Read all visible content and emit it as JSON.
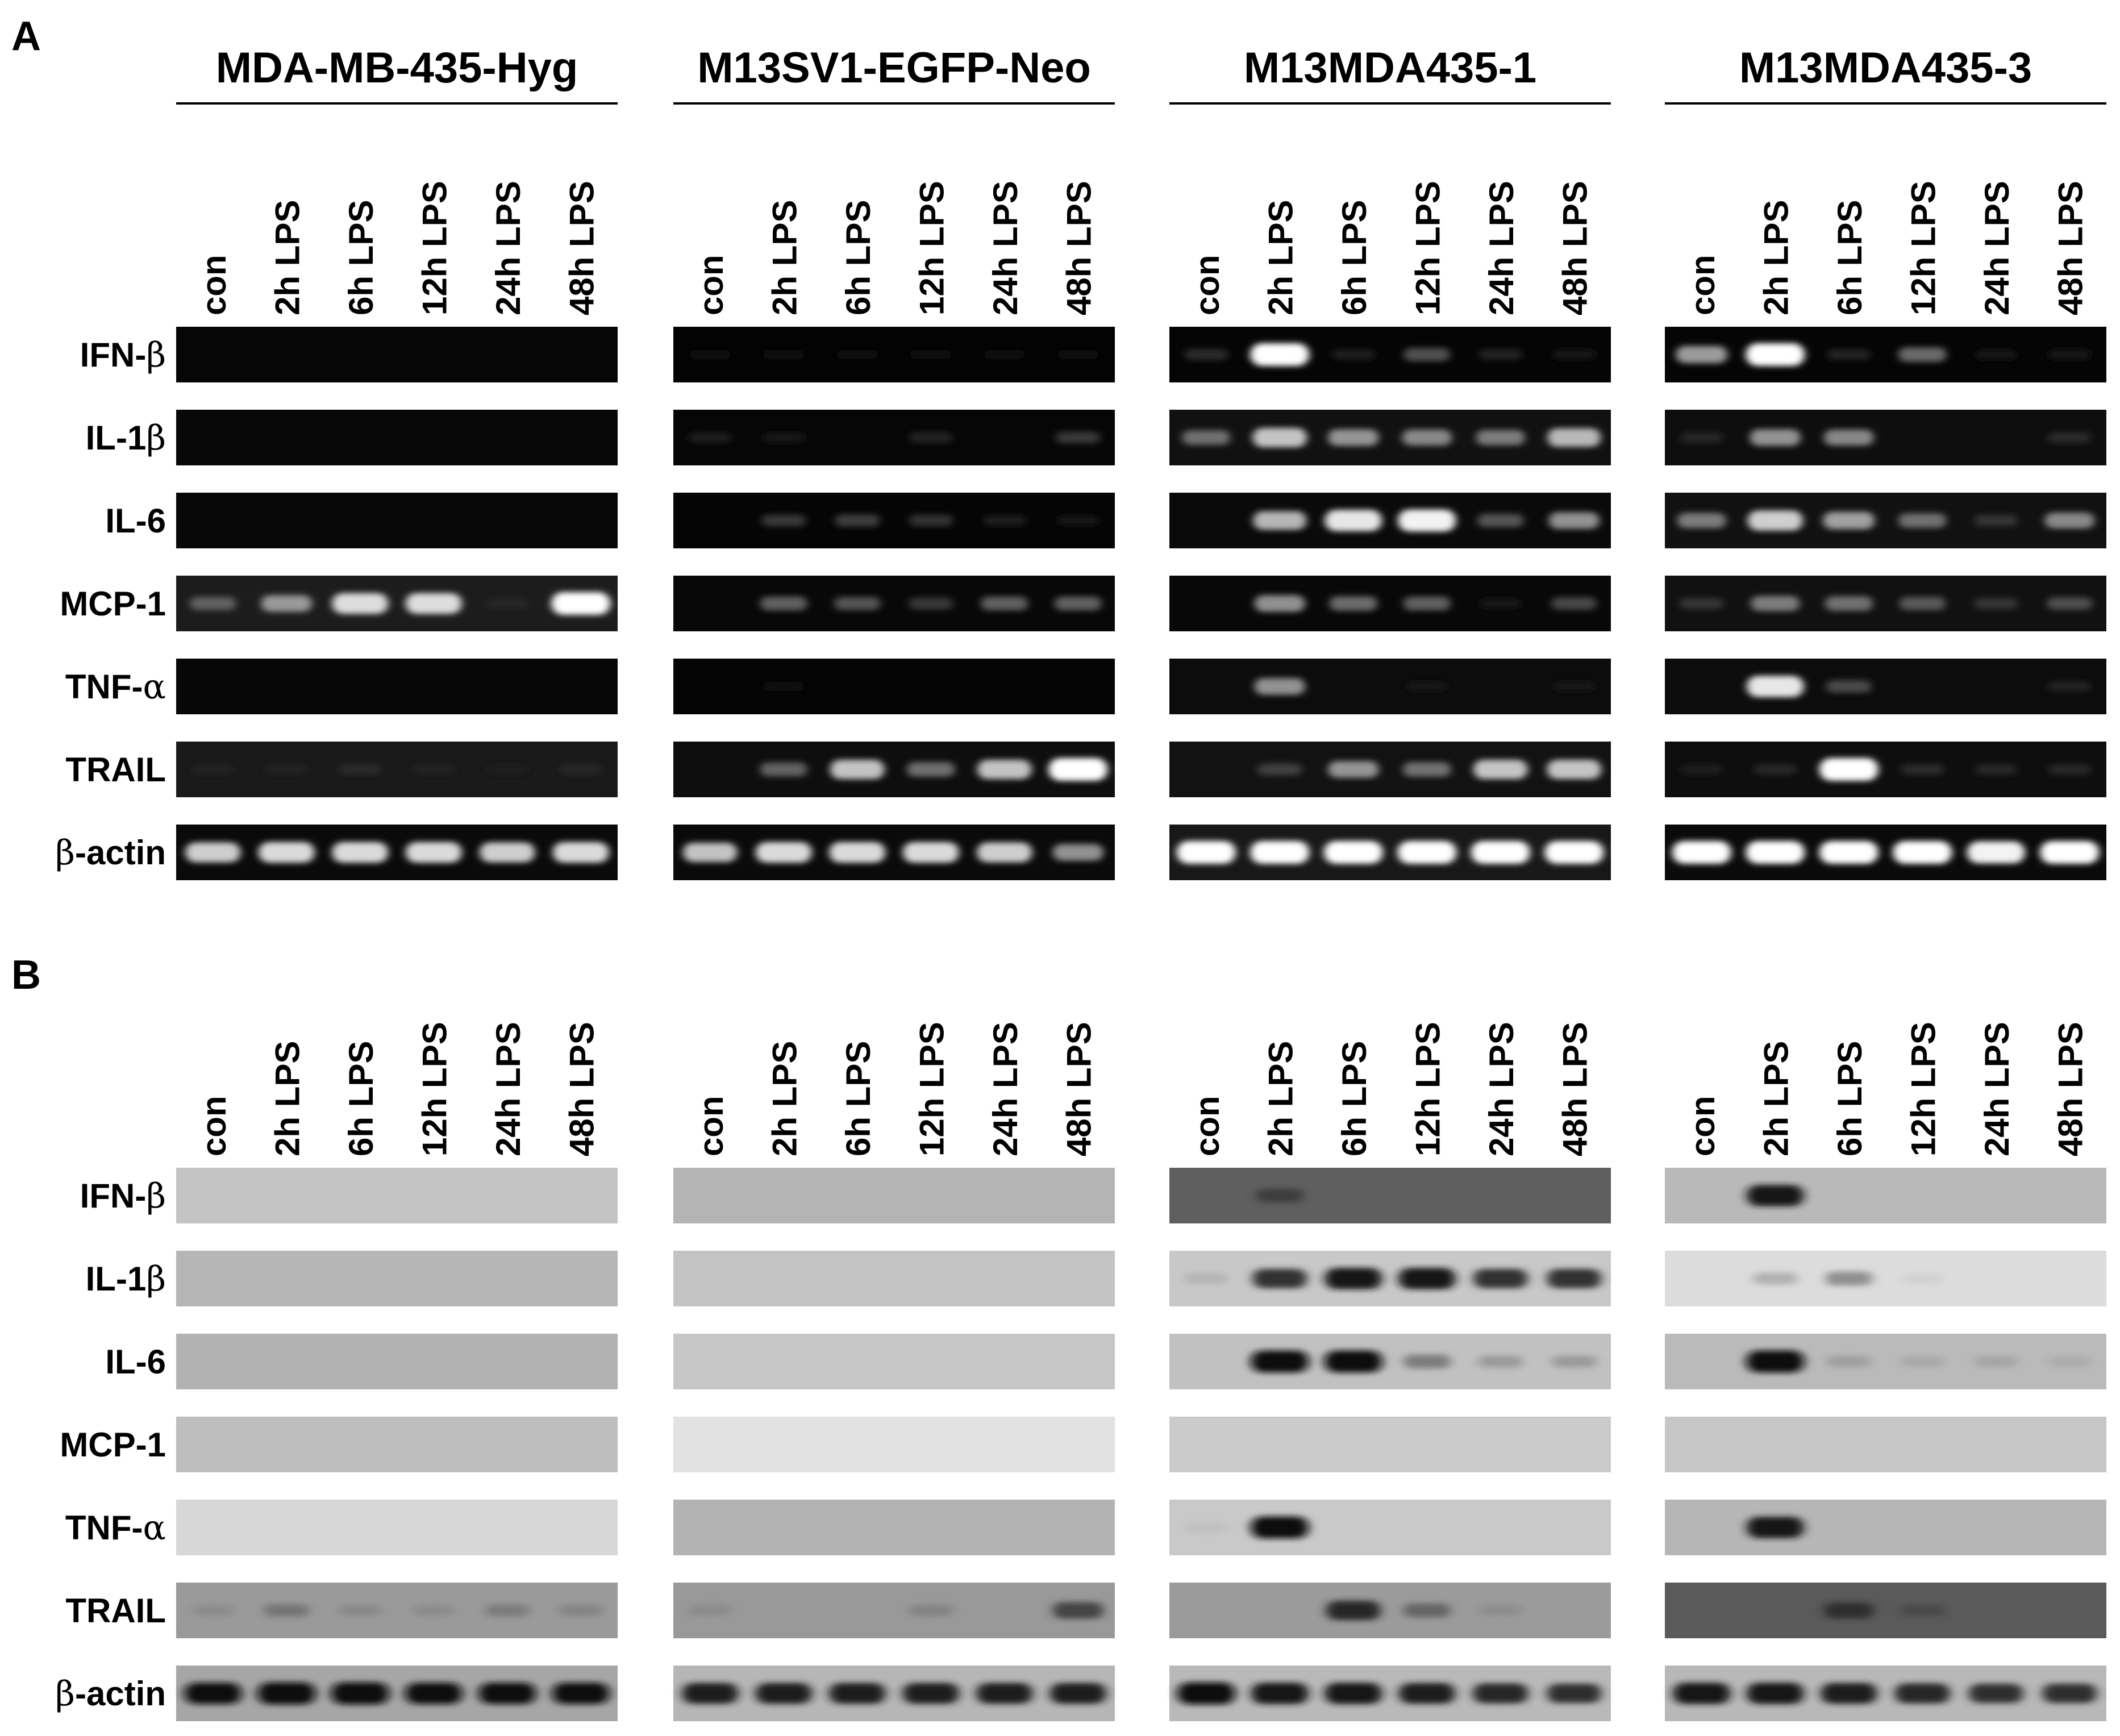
{
  "panels": [
    {
      "letter": "A",
      "type": "RT-PCR agarose gel"
    },
    {
      "letter": "B",
      "type": "Western blot"
    }
  ],
  "groups": [
    {
      "title": "MDA-MB-435-Hyg"
    },
    {
      "title": "M13SV1-EGFP-Neo"
    },
    {
      "title": "M13MDA435-1"
    },
    {
      "title": "M13MDA435-3"
    }
  ],
  "lanes": [
    "con",
    "2h LPS",
    "6h LPS",
    "12h LPS",
    "24h LPS",
    "48h LPS"
  ],
  "rows": [
    {
      "pre": "IFN-",
      "sym": "β",
      "post": ""
    },
    {
      "pre": "IL-1",
      "sym": "β",
      "post": ""
    },
    {
      "pre": "IL-6",
      "sym": "",
      "post": ""
    },
    {
      "pre": "MCP-1",
      "sym": "",
      "post": ""
    },
    {
      "pre": "TNF-",
      "sym": "α",
      "post": ""
    },
    {
      "pre": "TRAIL",
      "sym": "",
      "post": ""
    },
    {
      "pre": "",
      "sym": "β",
      "post": "-actin"
    }
  ],
  "strips": {
    "A": [
      [
        {
          "bg": "#060606",
          "bands": [
            0,
            0,
            0,
            0,
            0,
            0
          ]
        },
        {
          "bg": "#030303",
          "bands": [
            0.03,
            0.03,
            0.02,
            0.02,
            0.03,
            0.02
          ]
        },
        {
          "bg": "#050505",
          "bands": [
            0.15,
            1,
            0.1,
            0.3,
            0.12,
            0.08
          ]
        },
        {
          "bg": "#050505",
          "bands": [
            0.6,
            1,
            0.12,
            0.4,
            0.05,
            0.08
          ]
        }
      ],
      [
        {
          "bg": "#080808",
          "bands": [
            0,
            0,
            0,
            0,
            0,
            0
          ]
        },
        {
          "bg": "#060606",
          "bands": [
            0.1,
            0.06,
            0,
            0.12,
            0,
            0.2
          ]
        },
        {
          "bg": "#111111",
          "bands": [
            0.4,
            0.75,
            0.55,
            0.5,
            0.45,
            0.7
          ]
        },
        {
          "bg": "#0e0e0e",
          "bands": [
            0.1,
            0.55,
            0.5,
            0,
            0,
            0.12
          ]
        }
      ],
      [
        {
          "bg": "#080808",
          "bands": [
            0,
            0,
            0,
            0,
            0,
            0
          ]
        },
        {
          "bg": "#050505",
          "bands": [
            0,
            0.2,
            0.22,
            0.18,
            0.1,
            0.05
          ]
        },
        {
          "bg": "#0a0a0a",
          "bands": [
            0,
            0.7,
            0.9,
            0.95,
            0.3,
            0.55
          ]
        },
        {
          "bg": "#111111",
          "bands": [
            0.45,
            0.8,
            0.6,
            0.4,
            0.15,
            0.5
          ]
        }
      ],
      [
        {
          "bg": "#1c1c1c",
          "bands": [
            0.3,
            0.55,
            0.85,
            0.85,
            0.05,
            1
          ]
        },
        {
          "bg": "#080808",
          "bands": [
            0,
            0.35,
            0.3,
            0.2,
            0.35,
            0.35
          ]
        },
        {
          "bg": "#080808",
          "bands": [
            0,
            0.55,
            0.4,
            0.35,
            0.05,
            0.25
          ]
        },
        {
          "bg": "#111111",
          "bands": [
            0.15,
            0.45,
            0.4,
            0.3,
            0.15,
            0.25
          ]
        }
      ],
      [
        {
          "bg": "#070707",
          "bands": [
            0,
            0,
            0,
            0,
            0,
            0
          ]
        },
        {
          "bg": "#050505",
          "bands": [
            0,
            0.02,
            0,
            0,
            0,
            0
          ]
        },
        {
          "bg": "#0c0c0c",
          "bands": [
            0,
            0.55,
            0,
            0.03,
            0,
            0.04
          ]
        },
        {
          "bg": "#0c0c0c",
          "bands": [
            0,
            0.9,
            0.25,
            0,
            0,
            0.1
          ]
        }
      ],
      [
        {
          "bg": "#1a1a1a",
          "bands": [
            0.03,
            0.03,
            0.08,
            0.03,
            0.02,
            0.06
          ]
        },
        {
          "bg": "#0e0e0e",
          "bands": [
            0,
            0.35,
            0.75,
            0.4,
            0.75,
            1
          ]
        },
        {
          "bg": "#121212",
          "bands": [
            0,
            0.2,
            0.55,
            0.4,
            0.75,
            0.75
          ]
        },
        {
          "bg": "#0e0e0e",
          "bands": [
            0.05,
            0.1,
            1,
            0.12,
            0.1,
            0.1
          ]
        }
      ],
      [
        {
          "bg": "#0a0a0a",
          "bands": [
            0.8,
            0.85,
            0.85,
            0.85,
            0.8,
            0.85
          ]
        },
        {
          "bg": "#0a0a0a",
          "bands": [
            0.75,
            0.85,
            0.85,
            0.85,
            0.8,
            0.55
          ]
        },
        {
          "bg": "#181818",
          "bands": [
            1,
            1,
            1,
            1,
            1,
            1
          ]
        },
        {
          "bg": "#0a0a0a",
          "bands": [
            1,
            1,
            1,
            1,
            0.95,
            1
          ]
        }
      ]
    ],
    "B": [
      [
        {
          "bg": "#c4c4c4",
          "bands": [
            0,
            0,
            0,
            0,
            0,
            0
          ]
        },
        {
          "bg": "#b4b4b4",
          "bands": [
            0,
            0,
            0,
            0,
            0,
            0
          ]
        },
        {
          "bg": "#5f5f5f",
          "bands": [
            0,
            0.35,
            0,
            0,
            0,
            0
          ]
        },
        {
          "bg": "#b9b9b9",
          "bands": [
            0,
            0.9,
            0,
            0,
            0,
            0
          ]
        }
      ],
      [
        {
          "bg": "#b6b6b6",
          "bands": [
            0,
            0,
            0,
            0,
            0,
            0
          ]
        },
        {
          "bg": "#c3c3c3",
          "bands": [
            0,
            0,
            0,
            0,
            0,
            0
          ]
        },
        {
          "bg": "#c8c8c8",
          "bands": [
            0.1,
            0.75,
            0.9,
            0.9,
            0.75,
            0.75
          ]
        },
        {
          "bg": "#dcdcdc",
          "bands": [
            0,
            0.2,
            0.35,
            0.05,
            0,
            0
          ]
        }
      ],
      [
        {
          "bg": "#b2b2b2",
          "bands": [
            0,
            0,
            0,
            0,
            0,
            0
          ]
        },
        {
          "bg": "#c6c6c6",
          "bands": [
            0,
            0,
            0,
            0,
            0,
            0
          ]
        },
        {
          "bg": "#c1c1c1",
          "bands": [
            0,
            0.95,
            0.95,
            0.35,
            0.2,
            0.2
          ]
        },
        {
          "bg": "#bababa",
          "bands": [
            0,
            0.95,
            0.15,
            0.1,
            0.12,
            0.08
          ]
        }
      ],
      [
        {
          "bg": "#bebebe",
          "bands": [
            0,
            0,
            0,
            0,
            0,
            0
          ]
        },
        {
          "bg": "#e2e2e2",
          "bands": [
            0,
            0,
            0,
            0,
            0,
            0
          ]
        },
        {
          "bg": "#cbcbcb",
          "bands": [
            0,
            0,
            0,
            0,
            0,
            0
          ]
        },
        {
          "bg": "#c6c6c6",
          "bands": [
            0,
            0,
            0,
            0,
            0,
            0
          ]
        }
      ],
      [
        {
          "bg": "#d7d7d7",
          "bands": [
            0,
            0,
            0,
            0,
            0,
            0
          ]
        },
        {
          "bg": "#b3b3b3",
          "bands": [
            0,
            0,
            0,
            0,
            0,
            0
          ]
        },
        {
          "bg": "#c9c9c9",
          "bands": [
            0.05,
            0.95,
            0,
            0,
            0,
            0
          ]
        },
        {
          "bg": "#b6b6b6",
          "bands": [
            0,
            0.9,
            0,
            0,
            0,
            0
          ]
        }
      ],
      [
        {
          "bg": "#9a9a9a",
          "bands": [
            0.1,
            0.25,
            0.12,
            0.1,
            0.2,
            0.15
          ]
        },
        {
          "bg": "#999999",
          "bands": [
            0.1,
            0,
            0,
            0.15,
            0,
            0.55
          ]
        },
        {
          "bg": "#9b9b9b",
          "bands": [
            0,
            0,
            0.75,
            0.35,
            0.1,
            0
          ]
        },
        {
          "bg": "#5a5a5a",
          "bands": [
            0,
            0,
            0.5,
            0.2,
            0,
            0
          ]
        }
      ],
      [
        {
          "bg": "#a6a6a6",
          "bands": [
            0.9,
            0.95,
            0.95,
            0.9,
            0.9,
            0.9
          ]
        },
        {
          "bg": "#b6b6b6",
          "bands": [
            0.85,
            0.85,
            0.85,
            0.85,
            0.85,
            0.85
          ]
        },
        {
          "bg": "#b9b9b9",
          "bands": [
            0.95,
            0.9,
            0.9,
            0.85,
            0.8,
            0.75
          ]
        },
        {
          "bg": "#b8b8b8",
          "bands": [
            0.9,
            0.9,
            0.85,
            0.8,
            0.75,
            0.75
          ]
        }
      ]
    ]
  }
}
